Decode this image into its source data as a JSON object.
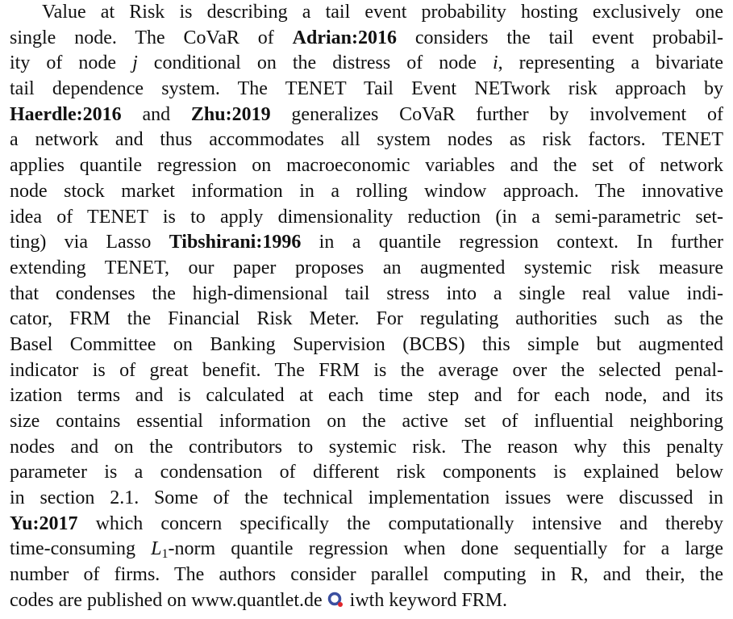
{
  "paragraph": {
    "lines": [
      [
        {
          "text": "Value at Risk is describing a tail event probability hosting exclusively one"
        }
      ],
      [
        {
          "text": "single node. The CoVaR of "
        },
        {
          "text": "Adrian:2016",
          "style": "bold"
        },
        {
          "text": " considers the tail event probabil-"
        }
      ],
      [
        {
          "text": "ity of node "
        },
        {
          "text": "j",
          "style": "italic"
        },
        {
          "text": " conditional on the distress of node "
        },
        {
          "text": "i",
          "style": "italic"
        },
        {
          "text": ", representing a bivariate"
        }
      ],
      [
        {
          "text": "tail dependence system. The TENET Tail Event NETwork risk approach by"
        }
      ],
      [
        {
          "text": "Haerdle:2016",
          "style": "bold"
        },
        {
          "text": " and "
        },
        {
          "text": "Zhu:2019",
          "style": "bold"
        },
        {
          "text": " generalizes CoVaR further by involvement of"
        }
      ],
      [
        {
          "text": "a network and thus accommodates all system nodes as risk factors. TENET"
        }
      ],
      [
        {
          "text": "applies quantile regression on macroeconomic variables and the set of network"
        }
      ],
      [
        {
          "text": "node stock market information in a rolling window approach. The innovative"
        }
      ],
      [
        {
          "text": "idea of TENET is to apply dimensionality reduction (in a semi-parametric set-"
        }
      ],
      [
        {
          "text": "ting) via Lasso "
        },
        {
          "text": "Tibshirani:1996",
          "style": "bold"
        },
        {
          "text": " in a quantile regression context. In further"
        }
      ],
      [
        {
          "text": "extending TENET, our paper proposes an augmented systemic risk measure"
        }
      ],
      [
        {
          "text": "that condenses the high-dimensional tail stress into a single real value indi-"
        }
      ],
      [
        {
          "text": "cator, FRM the Financial Risk Meter. For regulating authorities such as the"
        }
      ],
      [
        {
          "text": "Basel Committee on Banking Supervision (BCBS) this simple but augmented"
        }
      ],
      [
        {
          "text": "indicator is of great benefit. The FRM is the average over the selected penal-"
        }
      ],
      [
        {
          "text": "ization terms and is calculated at each time step and for each node, and its"
        }
      ],
      [
        {
          "text": "size contains essential information on the active set of influential neighboring"
        }
      ],
      [
        {
          "text": "nodes and on the contributors to systemic risk. The reason why this penalty"
        }
      ],
      [
        {
          "text": "parameter is a condensation of different risk components is explained below"
        }
      ],
      [
        {
          "text": "in section 2.1. Some of the technical implementation issues were discussed in"
        }
      ],
      [
        {
          "text": "Yu:2017",
          "style": "bold"
        },
        {
          "text": " which concern specifically the computationally intensive and thereby"
        }
      ],
      [
        {
          "text": "time-consuming "
        },
        {
          "text": "L",
          "style": "italic"
        },
        {
          "text": "1",
          "style": "sub"
        },
        {
          "text": "-norm quantile regression when done sequentially for a large"
        }
      ],
      [
        {
          "text": "number of firms. The authors consider parallel computing in R, and their, the"
        }
      ],
      [
        {
          "text": "codes are published on www.quantlet.de "
        },
        {
          "style": "icon"
        },
        {
          "text": " iwth keyword FRM."
        }
      ]
    ]
  }
}
